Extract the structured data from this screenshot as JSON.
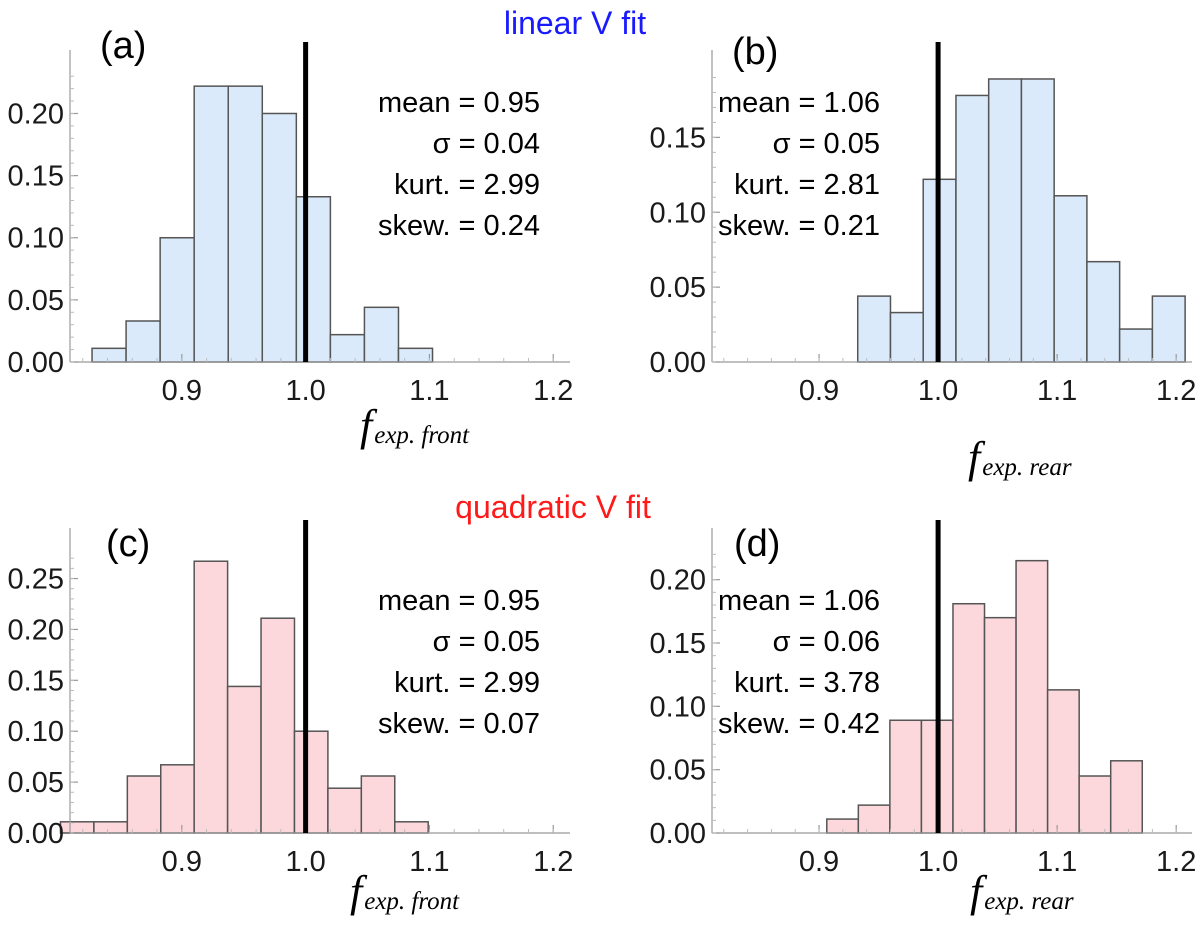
{
  "titles": {
    "linear": "linear V fit",
    "quadratic": "quadratic V fit"
  },
  "colors": {
    "linear_title": "#1a1aff",
    "quadratic_title": "#ff1a1a",
    "linear_fill": "#dbeafa",
    "quadratic_fill": "#fcd8dc",
    "bar_stroke": "#555555",
    "marker": "#000000"
  },
  "chart_data": [
    {
      "type": "bar",
      "panel_label": "(a)",
      "title": "linear V fit",
      "xlabel_main": "f",
      "xlabel_sub": "exp. front",
      "xlim": [
        0.8,
        1.22
      ],
      "ylim": [
        0,
        0.235
      ],
      "xticks": [
        0.9,
        1.0,
        1.1,
        1.2
      ],
      "xtick_labels": [
        "0.9",
        "1.0",
        "1.1",
        "1.2"
      ],
      "yticks": [
        0.0,
        0.05,
        0.1,
        0.15,
        0.2
      ],
      "ytick_labels": [
        "0.00",
        "0.05",
        "0.10",
        "0.15",
        "0.20"
      ],
      "bin_width": 0.0275,
      "bins": [
        0.8275,
        0.855,
        0.8825,
        0.91,
        0.9375,
        0.965,
        0.9925,
        1.02,
        1.0475,
        1.075
      ],
      "values": [
        0.011,
        0.033,
        0.1,
        0.222,
        0.222,
        0.2,
        0.133,
        0.022,
        0.044,
        0.011
      ],
      "marker_x": 1.0,
      "stats": [
        "mean = 0.95",
        "σ = 0.04",
        "kurt. = 2.99",
        "skew. = 0.24"
      ]
    },
    {
      "type": "bar",
      "panel_label": "(b)",
      "title": "linear V fit",
      "xlabel_main": "f",
      "xlabel_sub": "exp. rear",
      "xlim": [
        0.8,
        1.22
      ],
      "ylim": [
        0,
        0.195
      ],
      "xticks": [
        0.9,
        1.0,
        1.1,
        1.2
      ],
      "xtick_labels": [
        "0.9",
        "1.0",
        "1.1",
        "1.2"
      ],
      "yticks": [
        0.0,
        0.05,
        0.1,
        0.15
      ],
      "ytick_labels": [
        "0.00",
        "0.05",
        "0.10",
        "0.15"
      ],
      "bin_width": 0.0275,
      "bins": [
        0.9325,
        0.96,
        0.9875,
        1.015,
        1.0425,
        1.07,
        1.0975,
        1.125,
        1.1525,
        1.18
      ],
      "values": [
        0.044,
        0.033,
        0.122,
        0.178,
        0.189,
        0.189,
        0.111,
        0.067,
        0.022,
        0.044
      ],
      "marker_x": 1.0,
      "stats": [
        "mean = 1.06",
        "σ = 0.05",
        "kurt. = 2.81",
        "skew. = 0.21"
      ]
    },
    {
      "type": "bar",
      "panel_label": "(c)",
      "title": "quadratic V fit",
      "xlabel_main": "f",
      "xlabel_sub": "exp. front",
      "xlim": [
        0.8,
        1.22
      ],
      "ylim": [
        0,
        0.28
      ],
      "xticks": [
        0.9,
        1.0,
        1.1,
        1.2
      ],
      "xtick_labels": [
        "0.9",
        "1.0",
        "1.1",
        "1.2"
      ],
      "yticks": [
        0.0,
        0.05,
        0.1,
        0.15,
        0.2,
        0.25
      ],
      "ytick_labels": [
        "0.00",
        "0.05",
        "0.10",
        "0.15",
        "0.20",
        "0.25"
      ],
      "bin_width": 0.027,
      "bins": [
        0.802,
        0.829,
        0.856,
        0.883,
        0.91,
        0.937,
        0.964,
        0.991,
        1.018,
        1.045,
        1.072
      ],
      "values": [
        0.011,
        0.011,
        0.056,
        0.067,
        0.267,
        0.144,
        0.211,
        0.1,
        0.044,
        0.056,
        0.011
      ],
      "marker_x": 1.0,
      "stats": [
        "mean = 0.95",
        "σ = 0.05",
        "kurt. = 2.99",
        "skew. = 0.07"
      ]
    },
    {
      "type": "bar",
      "panel_label": "(d)",
      "title": "quadratic V fit",
      "xlabel_main": "f",
      "xlabel_sub": "exp. rear",
      "xlim": [
        0.8,
        1.22
      ],
      "ylim": [
        0,
        0.225
      ],
      "xticks": [
        0.9,
        1.0,
        1.1,
        1.2
      ],
      "xtick_labels": [
        "0.9",
        "1.0",
        "1.1",
        "1.2"
      ],
      "yticks": [
        0.0,
        0.05,
        0.1,
        0.15,
        0.2
      ],
      "ytick_labels": [
        "0.00",
        "0.05",
        "0.10",
        "0.15",
        "0.20"
      ],
      "bin_width": 0.0265,
      "bins": [
        0.9065,
        0.933,
        0.9595,
        0.986,
        1.0125,
        1.039,
        1.0655,
        1.092,
        1.1185,
        1.145
      ],
      "values": [
        0.011,
        0.022,
        0.089,
        0.089,
        0.181,
        0.17,
        0.215,
        0.113,
        0.045,
        0.057
      ],
      "marker_x": 1.0,
      "stats": [
        "mean = 1.06",
        "σ = 0.06",
        "kurt. = 3.78",
        "skew. = 0.42"
      ]
    }
  ]
}
